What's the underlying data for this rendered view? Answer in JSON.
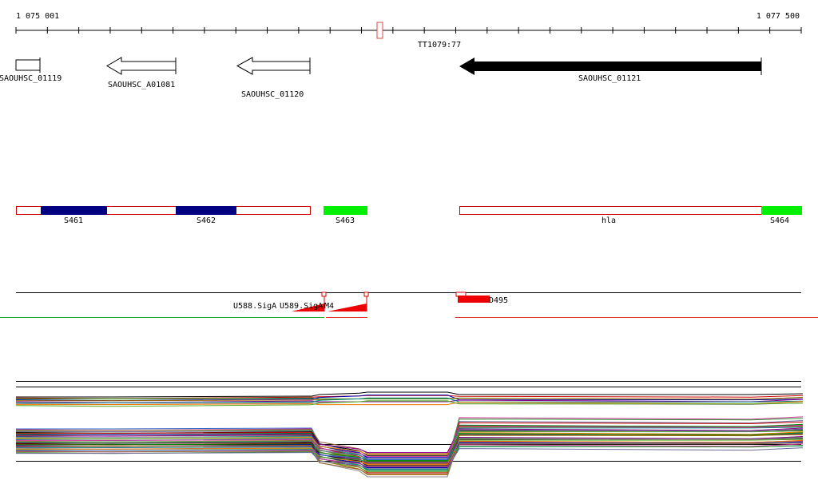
{
  "ruler": {
    "start": "1 075 001",
    "end": "1 077 500",
    "marker": "TT1079:77"
  },
  "genes": [
    "SAOUHSC_01119",
    "SAOUHSC_A01081",
    "SAOUHSC_01120",
    "SAOUHSC_01121"
  ],
  "regions": [
    "S461",
    "S462",
    "S463",
    "hla",
    "S464"
  ],
  "signals": [
    "U588.SigA",
    "U589.SigA",
    "M4",
    "D495"
  ]
}
